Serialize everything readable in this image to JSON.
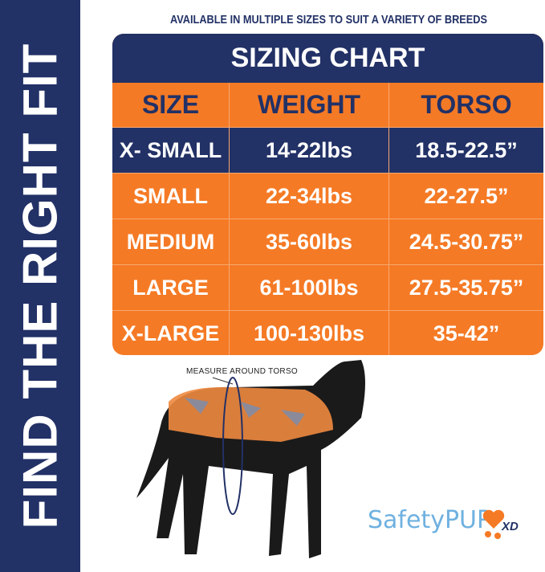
{
  "side_title": "FIND THE RIGHT FIT",
  "subtitle": "AVAILABLE IN MULTIPLE SIZES TO SUIT A VARIETY OF BREEDS",
  "table": {
    "title": "SIZING CHART",
    "headers": [
      "SIZE",
      "WEIGHT",
      "TORSO"
    ],
    "rows": [
      [
        "X- SMALL",
        "14-22lbs",
        "18.5-22.5”"
      ],
      [
        "SMALL",
        "22-34lbs",
        "22-27.5”"
      ],
      [
        "MEDIUM",
        "35-60lbs",
        "24.5-30.75”"
      ],
      [
        "LARGE",
        "61-100lbs",
        "27.5-35.75”"
      ],
      [
        "X-LARGE",
        "100-130lbs",
        "35-42”"
      ]
    ]
  },
  "caption": "MEASURE AROUND TORSO",
  "logo": {
    "text": "SafetyPUP",
    "suffix": "XD"
  },
  "colors": {
    "navy": "#223166",
    "orange": "#f57a25",
    "logo_blue": "#6fb1e0"
  }
}
